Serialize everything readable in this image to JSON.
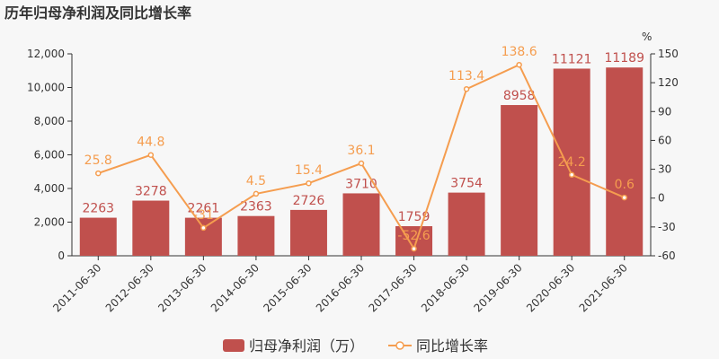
{
  "chart_data": {
    "title": "历年归母净利润及同比增长率",
    "type": "bar+line",
    "categories": [
      "2011-06-30",
      "2012-06-30",
      "2013-06-30",
      "2014-06-30",
      "2015-06-30",
      "2016-06-30",
      "2017-06-30",
      "2018-06-30",
      "2019-06-30",
      "2020-06-30",
      "2021-06-30"
    ],
    "series": [
      {
        "name": "归母净利润（万）",
        "type": "bar",
        "axis": "left",
        "color": "#c0504d",
        "values": [
          2263,
          3278,
          2261,
          2363,
          2726,
          3710,
          1759,
          3754,
          8958,
          11121,
          11189
        ],
        "labels": [
          "2263",
          "3278",
          "2261",
          "2363",
          "2726",
          "3710",
          "1759",
          "3754",
          "8958",
          "11121",
          "11189"
        ]
      },
      {
        "name": "同比增长率",
        "type": "line",
        "axis": "right",
        "color": "#f59d4f",
        "values": [
          25.8,
          44.8,
          -31,
          4.5,
          15.4,
          36.1,
          -52.6,
          113.4,
          138.6,
          24.2,
          0.6
        ],
        "labels": [
          "25.8",
          "44.8",
          "-31",
          "4.5",
          "15.4",
          "36.1",
          "-52.6",
          "113.4",
          "138.6",
          "24.2",
          "0.6"
        ]
      }
    ],
    "y_left": {
      "min": 0,
      "max": 12000,
      "ticks": [
        "0",
        "2,000",
        "4,000",
        "6,000",
        "8,000",
        "10,000",
        "12,000"
      ]
    },
    "y_right": {
      "min": -60,
      "max": 150,
      "ticks": [
        "-60",
        "-30",
        "0",
        "30",
        "60",
        "90",
        "120",
        "150"
      ],
      "unit": "%"
    },
    "legend_position": "bottom"
  }
}
